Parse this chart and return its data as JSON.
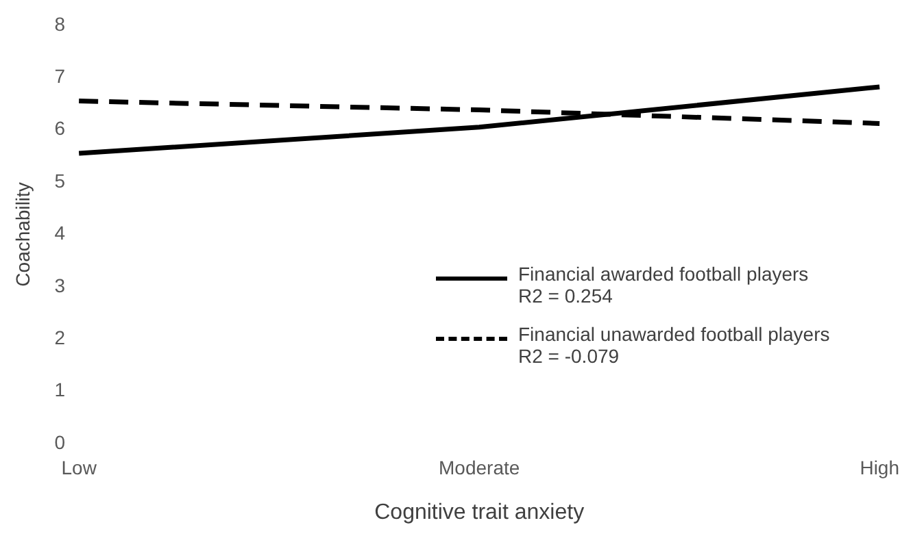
{
  "chart_data": {
    "type": "line",
    "xlabel": "Cognitive trait anxiety",
    "ylabel": "Coachability",
    "categories": [
      "Low",
      "Moderate",
      "High"
    ],
    "series": [
      {
        "name": "Financial awarded football players",
        "color": "#000000",
        "line_style": "solid",
        "values": [
          5.55,
          6.05,
          6.82
        ]
      },
      {
        "name": "Financial unawarded football players",
        "color": "#000000",
        "line_style": "dashed",
        "values": [
          6.55,
          6.38,
          6.12
        ]
      }
    ],
    "ylim": [
      0,
      8
    ],
    "yticks": [
      0,
      1,
      2,
      3,
      4,
      5,
      6,
      7,
      8
    ],
    "grid": false,
    "legend": "bottom right",
    "marker": "none",
    "annotations": [
      "R2 = 0.254",
      "R2 = -0.079"
    ]
  }
}
